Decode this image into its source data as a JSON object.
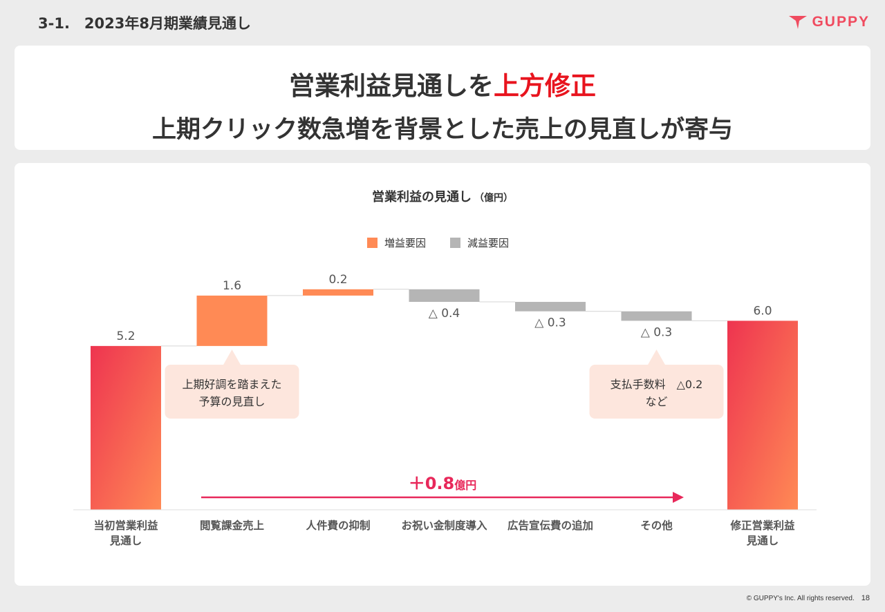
{
  "header": {
    "title": "3-1.　2023年8月期業績見通し",
    "logo_text": "GUPPY"
  },
  "headline": {
    "line1_prefix": "営業利益見通しを",
    "line1_highlight": "上方修正",
    "line2": "上期クリック数急増を背景とした売上の見直しが寄与"
  },
  "chart_data": {
    "type": "waterfall",
    "title": "営業利益の見通し",
    "unit_label": "（億円）",
    "legend": [
      {
        "name": "増益要因",
        "color": "#ff8a55"
      },
      {
        "name": "減益要因",
        "color": "#b5b5b5"
      }
    ],
    "colors": {
      "total_start": "#ee3450",
      "total_end": "#ff8a55",
      "increase": "#ff8a55",
      "decrease": "#b5b5b5",
      "accent": "#e8285a"
    },
    "steps": [
      {
        "category": [
          "当初営業利益",
          "見通し"
        ],
        "value": 5.2,
        "kind": "total",
        "label": "5.2"
      },
      {
        "category": [
          "閲覧課金売上"
        ],
        "value": 1.6,
        "kind": "increase",
        "label": "1.6"
      },
      {
        "category": [
          "人件費の抑制"
        ],
        "value": 0.2,
        "kind": "increase",
        "label": "0.2"
      },
      {
        "category": [
          "お祝い金制度導入"
        ],
        "value": -0.4,
        "kind": "decrease",
        "label": "△ 0.4"
      },
      {
        "category": [
          "広告宣伝費の追加"
        ],
        "value": -0.3,
        "kind": "decrease",
        "label": "△ 0.3"
      },
      {
        "category": [
          "その他"
        ],
        "value": -0.3,
        "kind": "decrease",
        "label": "△ 0.3"
      },
      {
        "category": [
          "修正営業利益",
          "見通し"
        ],
        "value": 6.0,
        "kind": "total",
        "label": "6.0"
      }
    ],
    "callouts": [
      {
        "anchor_step": 1,
        "lines": [
          "上期好調を踏まえた",
          "予算の見直し"
        ]
      },
      {
        "anchor_step": 5,
        "lines": [
          "支払手数料　△0.2",
          "など"
        ]
      }
    ],
    "delta": {
      "value": "＋0.8",
      "unit": "億円"
    },
    "ylim": [
      0,
      6.5
    ]
  },
  "footer": {
    "copyright": "© GUPPY's Inc. All rights reserved.",
    "page": "18"
  }
}
